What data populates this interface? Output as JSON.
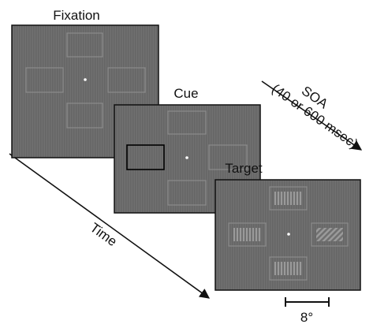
{
  "frames": [
    {
      "label": "Fixation"
    },
    {
      "label": "Cue"
    },
    {
      "label": "Target"
    }
  ],
  "time_label": "Time",
  "soa": {
    "label": "SOA",
    "detail": "(40 or 600 msec)"
  },
  "scale_label": "8°"
}
